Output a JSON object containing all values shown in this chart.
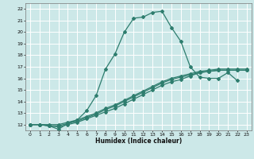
{
  "xlabel": "Humidex (Indice chaleur)",
  "bg_color": "#cce8e8",
  "grid_color": "#ffffff",
  "line_color": "#2e7d6e",
  "xlim": [
    -0.5,
    23.5
  ],
  "ylim": [
    11.5,
    22.5
  ],
  "xticks": [
    0,
    1,
    2,
    3,
    4,
    5,
    6,
    7,
    8,
    9,
    10,
    11,
    12,
    13,
    14,
    15,
    16,
    17,
    18,
    19,
    20,
    21,
    22,
    23
  ],
  "yticks": [
    12,
    13,
    14,
    15,
    16,
    17,
    18,
    19,
    20,
    21,
    22
  ],
  "line1_x": [
    0,
    1,
    2,
    3,
    4,
    5,
    6,
    7,
    8,
    9,
    10,
    11,
    12,
    13,
    14,
    15,
    16,
    17,
    18,
    19,
    20,
    21,
    22
  ],
  "line1_y": [
    12.0,
    12.0,
    11.9,
    11.6,
    12.1,
    12.4,
    13.2,
    14.5,
    16.8,
    18.1,
    20.0,
    21.2,
    21.3,
    21.7,
    21.8,
    20.4,
    19.2,
    17.0,
    16.1,
    16.0,
    16.0,
    16.5,
    15.8
  ],
  "line2_x": [
    0,
    1,
    2,
    3,
    4,
    5,
    6,
    7,
    8,
    9,
    10,
    11,
    12,
    13,
    14,
    15,
    16,
    17,
    18,
    19,
    20,
    21,
    22,
    23
  ],
  "line2_y": [
    12.0,
    12.0,
    11.9,
    11.8,
    12.0,
    12.2,
    12.5,
    12.8,
    13.1,
    13.4,
    13.8,
    14.2,
    14.6,
    15.0,
    15.4,
    15.7,
    15.9,
    16.2,
    16.5,
    16.6,
    16.7,
    16.7,
    16.7,
    16.7
  ],
  "line3_x": [
    0,
    1,
    2,
    3,
    4,
    5,
    6,
    7,
    8,
    9,
    10,
    11,
    12,
    13,
    14,
    15,
    16,
    17,
    18,
    19,
    20,
    21,
    22,
    23
  ],
  "line3_y": [
    12.0,
    12.0,
    11.9,
    11.9,
    12.1,
    12.3,
    12.6,
    12.9,
    13.3,
    13.6,
    14.0,
    14.4,
    14.8,
    15.2,
    15.6,
    15.9,
    16.1,
    16.3,
    16.5,
    16.6,
    16.7,
    16.7,
    16.7,
    16.7
  ],
  "line4_x": [
    0,
    1,
    2,
    3,
    4,
    5,
    6,
    7,
    8,
    9,
    10,
    11,
    12,
    13,
    14,
    15,
    16,
    17,
    18,
    19,
    20,
    21,
    22,
    23
  ],
  "line4_y": [
    12.0,
    12.0,
    12.0,
    12.0,
    12.2,
    12.4,
    12.7,
    13.0,
    13.4,
    13.7,
    14.1,
    14.5,
    14.9,
    15.3,
    15.7,
    16.0,
    16.2,
    16.4,
    16.6,
    16.7,
    16.8,
    16.8,
    16.8,
    16.8
  ]
}
